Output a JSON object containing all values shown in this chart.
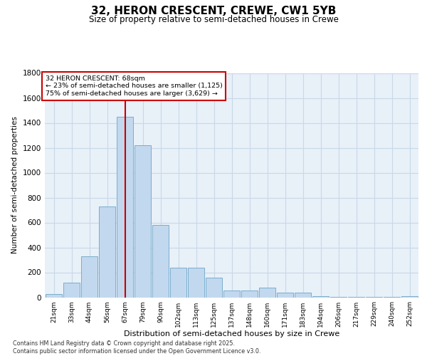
{
  "title": "32, HERON CRESCENT, CREWE, CW1 5YB",
  "subtitle": "Size of property relative to semi-detached houses in Crewe",
  "xlabel": "Distribution of semi-detached houses by size in Crewe",
  "ylabel": "Number of semi-detached properties",
  "bins": [
    "21sqm",
    "33sqm",
    "44sqm",
    "56sqm",
    "67sqm",
    "79sqm",
    "90sqm",
    "102sqm",
    "113sqm",
    "125sqm",
    "137sqm",
    "148sqm",
    "160sqm",
    "171sqm",
    "183sqm",
    "194sqm",
    "206sqm",
    "217sqm",
    "229sqm",
    "240sqm",
    "252sqm"
  ],
  "bar_heights": [
    25,
    120,
    330,
    730,
    1450,
    1220,
    580,
    240,
    240,
    160,
    55,
    55,
    75,
    40,
    40,
    10,
    5,
    5,
    5,
    5,
    10
  ],
  "bar_color": "#c2d8ee",
  "bar_edge_color": "#7aaecd",
  "grid_color": "#c8d8e8",
  "background_color": "#e8f0f8",
  "vline_x_index": 4,
  "vline_color": "#cc0000",
  "annotation_title": "32 HERON CRESCENT: 68sqm",
  "annotation_line1": "← 23% of semi-detached houses are smaller (1,125)",
  "annotation_line2": "75% of semi-detached houses are larger (3,629) →",
  "ylim": [
    0,
    1800
  ],
  "yticks": [
    0,
    200,
    400,
    600,
    800,
    1000,
    1200,
    1400,
    1600,
    1800
  ],
  "footer_line1": "Contains HM Land Registry data © Crown copyright and database right 2025.",
  "footer_line2": "Contains public sector information licensed under the Open Government Licence v3.0."
}
